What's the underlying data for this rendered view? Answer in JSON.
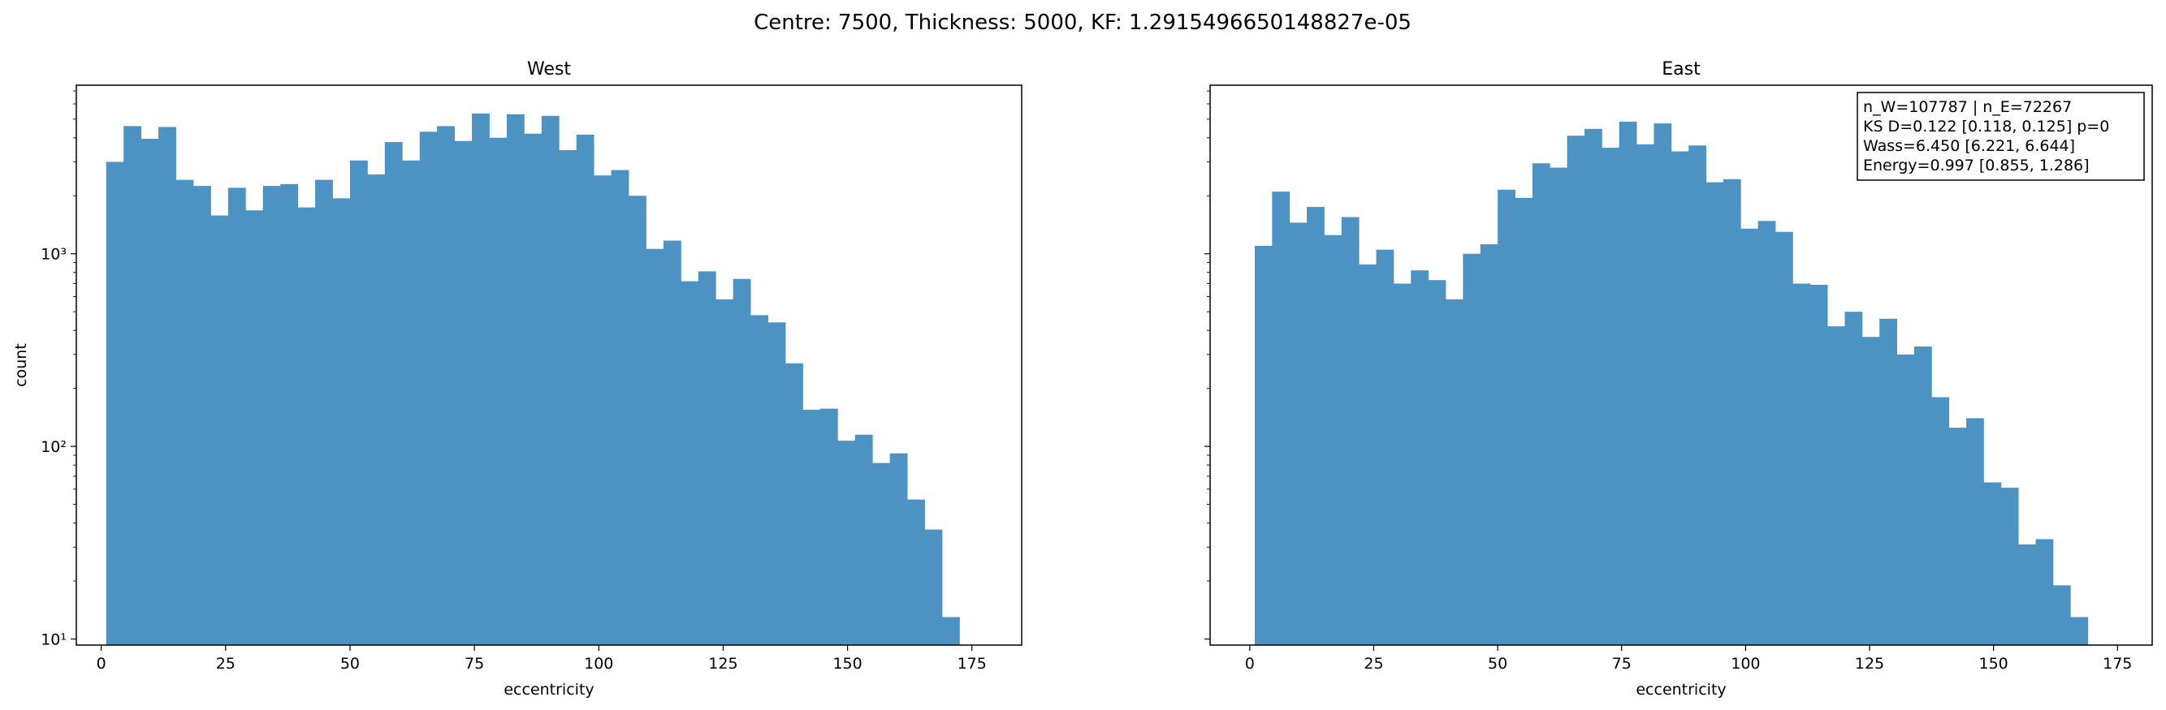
{
  "figure": {
    "suptitle": "Centre: 7500, Thickness: 5000, KF: 1.2915496650148827e-05"
  },
  "colors": {
    "bar": "#4c92c3",
    "axis": "#000000",
    "background": "#ffffff"
  },
  "chart_data": [
    {
      "type": "bar",
      "title": "West",
      "xlabel": "eccentricity",
      "ylabel": "count",
      "yscale": "log",
      "xlim": [
        -5,
        185
      ],
      "ylim": [
        9.3,
        7500
      ],
      "xticks": [
        "0",
        "25",
        "50",
        "75",
        "100",
        "125",
        "150",
        "175"
      ],
      "yticks": [
        "10¹",
        "10²",
        "10³"
      ],
      "grid": false,
      "legend": "none",
      "bin_start": 1,
      "bin_width": 3.5,
      "values": [
        3000,
        4600,
        3950,
        4550,
        2420,
        2250,
        1580,
        2200,
        1680,
        2250,
        2300,
        1740,
        2420,
        1940,
        3050,
        2580,
        3800,
        3050,
        4300,
        4600,
        3850,
        5350,
        4000,
        5300,
        4200,
        5200,
        3450,
        4150,
        2550,
        2720,
        2000,
        1060,
        1170,
        720,
        810,
        580,
        740,
        480,
        440,
        270,
        155,
        157,
        107,
        115,
        82,
        92,
        53,
        37,
        13
      ]
    },
    {
      "type": "bar",
      "title": "East",
      "xlabel": "eccentricity",
      "ylabel": "",
      "yscale": "log",
      "xlim": [
        -8,
        182
      ],
      "ylim": [
        9.3,
        7500
      ],
      "xticks": [
        "0",
        "25",
        "50",
        "75",
        "100",
        "125",
        "150",
        "175"
      ],
      "grid": false,
      "legend": "none",
      "bin_start": 1,
      "bin_width": 3.5,
      "values": [
        1100,
        2100,
        1450,
        1750,
        1250,
        1550,
        880,
        1050,
        700,
        820,
        730,
        580,
        1000,
        1120,
        2150,
        1950,
        2950,
        2800,
        4100,
        4450,
        3550,
        4850,
        3700,
        4750,
        3400,
        3650,
        2350,
        2440,
        1350,
        1480,
        1300,
        700,
        690,
        420,
        500,
        370,
        460,
        300,
        330,
        180,
        125,
        140,
        65,
        61,
        31,
        33,
        19,
        13
      ],
      "annotation": [
        "n_W=107787 | n_E=72267",
        "KS D=0.122 [0.118, 0.125]  p=0",
        "Wass=6.450 [6.221, 6.644]",
        "Energy=0.997 [0.855, 1.286]"
      ]
    }
  ]
}
